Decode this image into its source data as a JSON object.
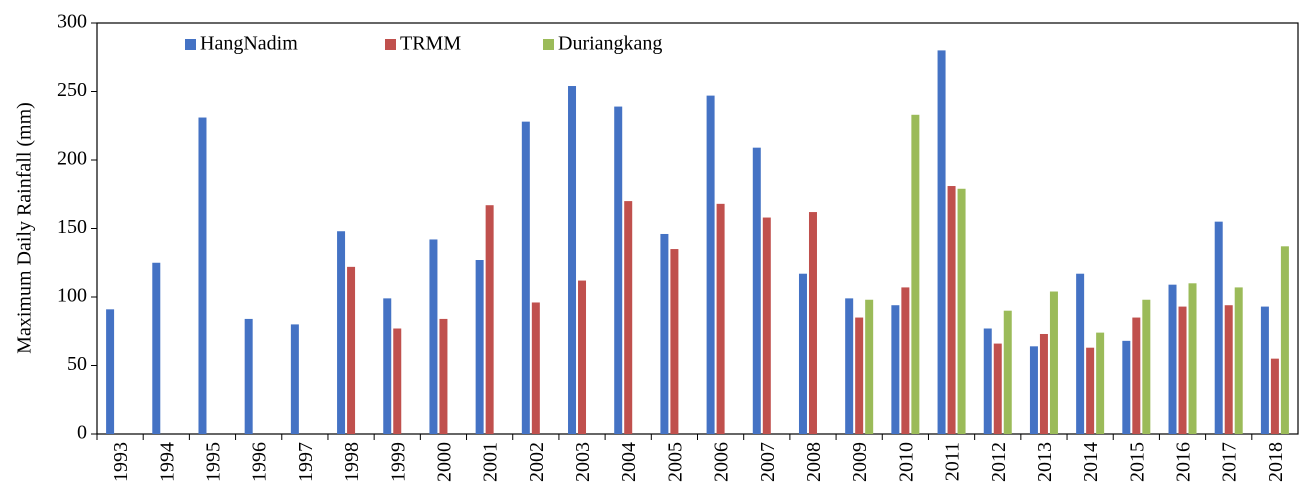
{
  "chart_data": {
    "type": "bar",
    "y_label": "Maximum Daily Rainfall (mm)",
    "categories": [
      "1993",
      "1994",
      "1995",
      "1996",
      "1997",
      "1998",
      "1999",
      "2000",
      "2001",
      "2002",
      "2003",
      "2004",
      "2005",
      "2006",
      "2007",
      "2008",
      "2009",
      "2010",
      "2011",
      "2012",
      "2013",
      "2014",
      "2015",
      "2016",
      "2017",
      "2018"
    ],
    "series": [
      {
        "name": "HangNadim",
        "color": "#4472c4",
        "values": [
          91,
          125,
          231,
          84,
          80,
          148,
          99,
          142,
          127,
          228,
          254,
          239,
          146,
          247,
          209,
          117,
          99,
          94,
          280,
          77,
          64,
          117,
          68,
          109,
          155,
          93
        ]
      },
      {
        "name": "TRMM",
        "color": "#c0504d",
        "values": [
          null,
          null,
          null,
          null,
          null,
          122,
          77,
          84,
          167,
          96,
          112,
          170,
          135,
          168,
          158,
          162,
          85,
          107,
          181,
          66,
          73,
          63,
          85,
          93,
          94,
          55
        ]
      },
      {
        "name": "Duriangkang",
        "color": "#9bbb59",
        "values": [
          null,
          null,
          null,
          null,
          null,
          null,
          null,
          null,
          null,
          null,
          null,
          null,
          null,
          null,
          null,
          null,
          98,
          233,
          179,
          90,
          104,
          74,
          98,
          110,
          107,
          137
        ]
      }
    ],
    "ylim": [
      0,
      300
    ],
    "yticks": [
      0,
      50,
      100,
      150,
      200,
      250,
      300
    ],
    "grid": false,
    "legend": "top-left"
  }
}
